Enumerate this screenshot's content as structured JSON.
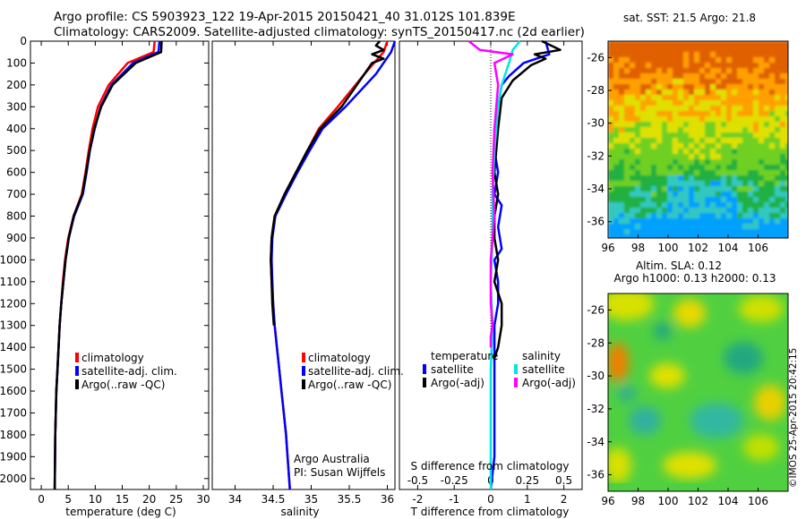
{
  "header": {
    "title_line1": "Argo profile: CS 5903923_122 19-Apr-2015 20150421_40 31.012S 101.839E",
    "title_line2": "Climatology: CARS2009. Satellite-adjusted climatology: synTS_20150417.nc (2d earlier)"
  },
  "credits": {
    "line1": "Argo Australia",
    "line2": "PI: Susan Wijffels"
  },
  "stamp": "©IMOS 25-Apr-2015 20:42:15",
  "colors": {
    "climatology": "#ff0000",
    "satellite": "#0000ff",
    "argo": "#000000",
    "sat_salinity": "#00e5e5",
    "argo_salinity_adj": "#ff00ff"
  },
  "legend_temp": [
    "climatology",
    "satellite-adj. clim.",
    "Argo(..raw -QC)"
  ],
  "legend_sal": [
    "climatology",
    "satellite-adj. clim.",
    "Argo(..raw -QC)"
  ],
  "legend_diff": {
    "temp_header": "temperature",
    "sal_header": "salinity",
    "temp_items": [
      "satellite",
      "Argo(-adj)"
    ],
    "sal_items": [
      "satellite",
      "Argo(-adj)"
    ]
  },
  "chart_data": [
    {
      "type": "line",
      "xlabel": "temperature (deg C)",
      "ylabel": "",
      "xlim": [
        -2,
        31
      ],
      "ylim": [
        2050,
        0
      ],
      "y_inverted": true,
      "xticks": [
        0,
        5,
        10,
        15,
        20,
        25,
        30
      ],
      "yticks": [
        0,
        100,
        200,
        300,
        400,
        500,
        600,
        700,
        800,
        900,
        1000,
        1100,
        1200,
        1300,
        1400,
        1500,
        1600,
        1700,
        1800,
        1900,
        2000
      ],
      "legend_position": "lower-center",
      "series": [
        {
          "name": "climatology",
          "color": "#ff0000",
          "x": [
            21,
            20.8,
            16,
            12.5,
            10.5,
            9.5,
            8.8,
            8.2,
            7.5,
            6,
            5,
            4.4,
            4,
            3.7,
            3.4,
            3.2,
            3,
            2.8,
            2.7,
            2.6,
            2.5
          ],
          "y": [
            0,
            50,
            100,
            200,
            300,
            400,
            500,
            600,
            700,
            800,
            900,
            1000,
            1100,
            1200,
            1300,
            1400,
            1500,
            1600,
            1700,
            1800,
            2050
          ]
        },
        {
          "name": "satellite-adj. clim.",
          "color": "#0000ff",
          "x": [
            21.9,
            21.7,
            17,
            13,
            11,
            9.9,
            9,
            8.4,
            7.7,
            6.1,
            5.1,
            4.5,
            4.1,
            3.7,
            3.4,
            3.2,
            3,
            2.8,
            2.7,
            2.6,
            2.5
          ],
          "y": [
            0,
            50,
            100,
            200,
            300,
            400,
            500,
            600,
            700,
            800,
            900,
            1000,
            1100,
            1200,
            1300,
            1400,
            1500,
            1600,
            1700,
            1800,
            2050
          ]
        },
        {
          "name": "Argo(..raw -QC)",
          "color": "#000000",
          "x": [
            22.3,
            22.2,
            17.5,
            13.2,
            11.1,
            9.8,
            9,
            8.3,
            7.6,
            6,
            5.1,
            4.5,
            4.1,
            3.7,
            3.4,
            3.2,
            3,
            2.8,
            2.7,
            2.6,
            2.5
          ],
          "y": [
            0,
            50,
            100,
            200,
            300,
            400,
            500,
            600,
            700,
            800,
            900,
            1000,
            1100,
            1200,
            1300,
            1400,
            1500,
            1600,
            1700,
            1800,
            2050
          ]
        }
      ]
    },
    {
      "type": "line",
      "xlabel": "salinity",
      "ylabel": "",
      "xlim": [
        33.7,
        36.1
      ],
      "ylim": [
        2050,
        0
      ],
      "y_inverted": true,
      "xticks": [
        34,
        34.5,
        35,
        35.5,
        36
      ],
      "legend_position": "lower-right",
      "series": [
        {
          "name": "climatology",
          "color": "#ff0000",
          "x": [
            36,
            35.95,
            35.7,
            35.35,
            35.1,
            34.95,
            34.8,
            34.65,
            34.52,
            34.48,
            34.47,
            34.48,
            34.5,
            34.52,
            34.55,
            34.58,
            34.61,
            34.64,
            34.67,
            34.69,
            34.72
          ],
          "y": [
            0,
            50,
            150,
            300,
            400,
            500,
            600,
            700,
            800,
            900,
            1000,
            1100,
            1200,
            1300,
            1400,
            1500,
            1600,
            1700,
            1800,
            1900,
            2050
          ]
        },
        {
          "name": "satellite-adj. clim.",
          "color": "#0000ff",
          "x": [
            36.1,
            36.05,
            35.85,
            35.45,
            35.15,
            34.98,
            34.82,
            34.67,
            34.53,
            34.49,
            34.48,
            34.49,
            34.5,
            34.52,
            34.55,
            34.58,
            34.61,
            34.64,
            34.67,
            34.69,
            34.72
          ],
          "y": [
            0,
            50,
            150,
            300,
            400,
            500,
            600,
            700,
            800,
            900,
            1000,
            1100,
            1200,
            1300,
            1400,
            1500,
            1600,
            1700,
            1800,
            1900,
            2050
          ]
        },
        {
          "name": "Argo(..raw -QC)",
          "color": "#000000",
          "x": [
            35.9,
            35.85,
            35.95,
            35.8,
            35.95,
            35.8,
            35.4,
            35.12,
            34.95,
            34.8,
            34.65,
            34.52,
            34.48,
            34.47,
            34.48,
            34.49,
            34.51
          ],
          "y": [
            0,
            20,
            40,
            60,
            80,
            100,
            300,
            400,
            500,
            600,
            700,
            800,
            900,
            1000,
            1100,
            1200,
            1300
          ]
        }
      ]
    },
    {
      "type": "line",
      "xlabel": "T difference from climatology",
      "secondary_xlabel": "S difference from climatology",
      "xlim": [
        -2.5,
        2.5
      ],
      "ylim": [
        2050,
        0
      ],
      "y_inverted": true,
      "xticks": [
        -2,
        -1,
        0,
        1,
        2
      ],
      "secondary_xticks": [
        -0.5,
        -0.25,
        0,
        0.25,
        0.5
      ],
      "series": [
        {
          "name": "temperature satellite",
          "color": "#0000ff",
          "x": [
            1.5,
            1.6,
            0.9,
            0.5,
            0.3,
            0.2,
            0.1,
            0.1,
            0.2,
            0.1,
            0.3,
            0.2,
            0.3,
            0.1,
            0.2,
            0.2,
            0.1,
            0.1,
            0.1,
            0.1,
            0.1,
            0
          ],
          "y": [
            0,
            60,
            100,
            160,
            200,
            300,
            400,
            500,
            600,
            700,
            750,
            850,
            950,
            1000,
            1100,
            1200,
            1300,
            1400,
            1500,
            1700,
            1900,
            2050
          ]
        },
        {
          "name": "temperature Argo(-adj)",
          "color": "#000000",
          "x": [
            1.4,
            1.9,
            1.2,
            1.5,
            1.1,
            0.6,
            0.3,
            0.2,
            0.1,
            0.2,
            0.1,
            0.1,
            0.2,
            0.1,
            0.3,
            0.3,
            0.2,
            0.1
          ],
          "y": [
            0,
            40,
            60,
            80,
            110,
            180,
            260,
            400,
            600,
            700,
            800,
            900,
            1000,
            1100,
            1200,
            1300,
            1400,
            1450
          ]
        },
        {
          "name": "salinity satellite",
          "color": "#00e5e5",
          "x": [
            0.8,
            0.6,
            0.5,
            0.3,
            0.2,
            0.1,
            0.05,
            0.05,
            0,
            0.05,
            0,
            0,
            0
          ],
          "y": [
            0,
            40,
            100,
            200,
            300,
            500,
            700,
            900,
            1100,
            1300,
            1500,
            1800,
            2050
          ]
        },
        {
          "name": "salinity Argo(-adj)",
          "color": "#ff00ff",
          "x": [
            -0.6,
            -0.3,
            0.6,
            0.1,
            0.2,
            0.1,
            0.05,
            0.1,
            0,
            0,
            0.05,
            0,
            0
          ],
          "y": [
            0,
            40,
            60,
            100,
            200,
            400,
            600,
            800,
            1000,
            1200,
            1300,
            1350,
            1400
          ]
        }
      ]
    },
    {
      "type": "heatmap",
      "title": "sat. SST: 21.5 Argo: 21.8",
      "xlim": [
        96,
        108
      ],
      "ylim": [
        -37,
        -25
      ],
      "xticks": [
        96,
        98,
        100,
        102,
        104,
        106
      ],
      "yticks": [
        -26,
        -28,
        -30,
        -32,
        -34,
        -36
      ],
      "colormap": [
        "#0000a0",
        "#00b0ff",
        "#20c050",
        "#d0e000",
        "#ff8000",
        "#d04000"
      ]
    },
    {
      "type": "heatmap",
      "title": "Altim. SLA: 0.12",
      "subtitle": "Argo h1000: 0.13 h2000: 0.13",
      "xlim": [
        96,
        108
      ],
      "ylim": [
        -37,
        -25
      ],
      "xticks": [
        96,
        98,
        100,
        102,
        104,
        106
      ],
      "yticks": [
        -26,
        -28,
        -30,
        -32,
        -34,
        -36
      ],
      "colormap": [
        "#20b080",
        "#40d040",
        "#d0e000",
        "#ff8000"
      ]
    }
  ]
}
